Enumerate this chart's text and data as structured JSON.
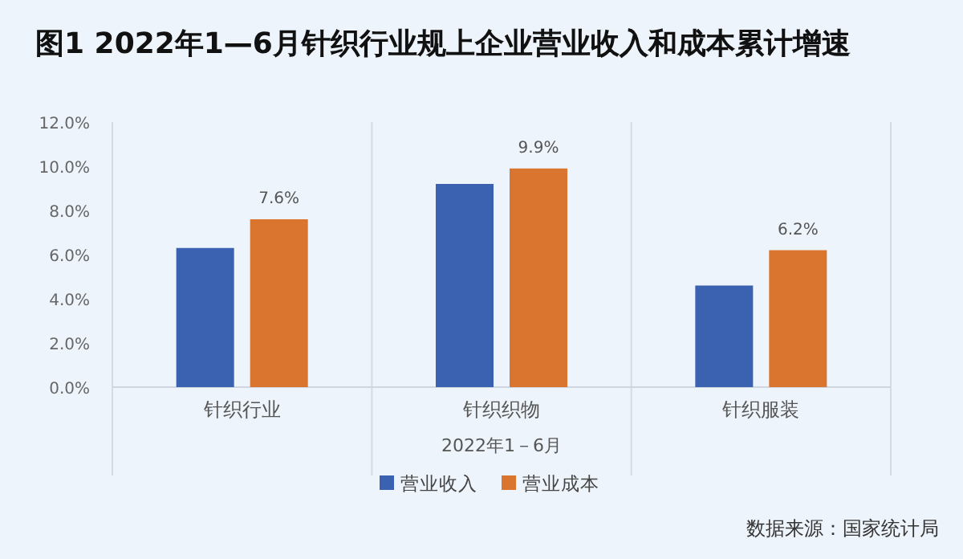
{
  "chart_data": {
    "type": "bar",
    "title": "图1  2022年1—6月针织行业规上企业营业收入和成本累计增速",
    "xlabel": "2022年1－6月",
    "annotations": [
      "数据来源：国家统计局"
    ],
    "categories": [
      "针织行业",
      "针织织物",
      "针织服装"
    ],
    "series": [
      {
        "name": "营业收入",
        "color": "#3a62b0",
        "values": [
          6.3,
          9.2,
          4.6
        ]
      },
      {
        "name": "营业成本",
        "color": "#d9752f",
        "values": [
          7.6,
          9.9,
          6.2
        ],
        "value_labels": [
          "7.6%",
          "9.9%",
          "6.2%"
        ]
      }
    ],
    "ylim": [
      0,
      12
    ],
    "yticks": [
      {
        "value": 0,
        "label": "0.0%"
      },
      {
        "value": 2,
        "label": "2.0%"
      },
      {
        "value": 4,
        "label": "4.0%"
      },
      {
        "value": 6,
        "label": "6.0%"
      },
      {
        "value": 8,
        "label": "8.0%"
      },
      {
        "value": 10,
        "label": "10.0%"
      },
      {
        "value": 12,
        "label": "12.0%"
      }
    ],
    "grid": "x",
    "legend": "bottom"
  }
}
